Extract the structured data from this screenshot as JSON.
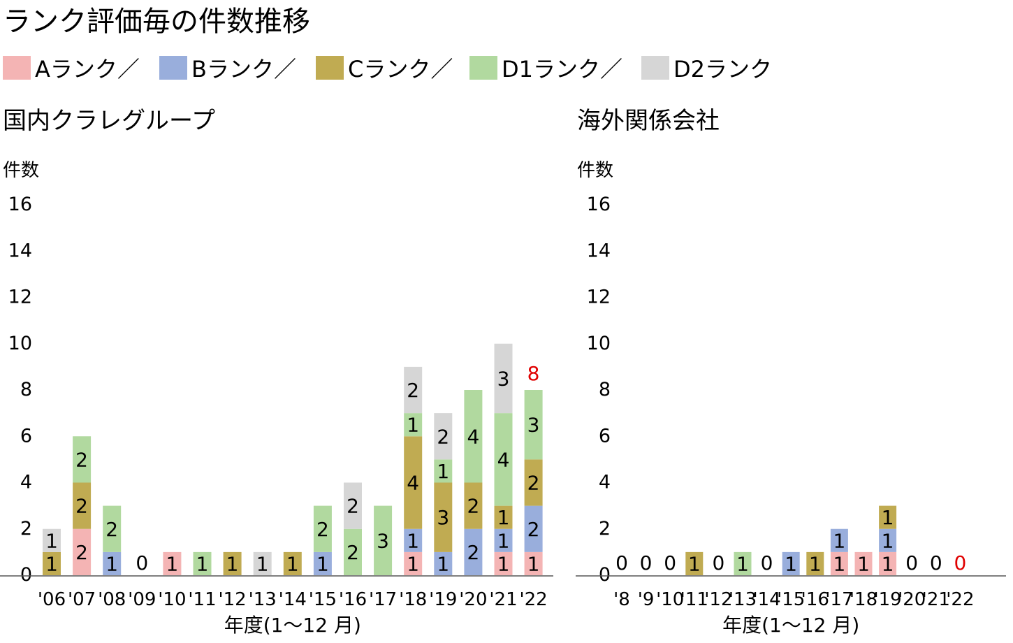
{
  "title": "ランク評価毎の件数推移",
  "legend": [
    {
      "name": "Aランク",
      "sep": "／",
      "color": "#f4b4b4"
    },
    {
      "name": "Bランク",
      "sep": "／",
      "color": "#99aedc"
    },
    {
      "name": "Cランク",
      "sep": "／",
      "color": "#c0ab52"
    },
    {
      "name": "D1ランク",
      "sep": "／",
      "color": "#b1d99f"
    },
    {
      "name": "D2ランク",
      "sep": "",
      "color": "#d6d6d6"
    }
  ],
  "chart_data": [
    {
      "type": "bar",
      "stacked": true,
      "title": "国内クラレグループ",
      "ylabel": "件数",
      "xlabel": "年度(1～12 月)",
      "ylim": [
        0,
        16
      ],
      "yticks": [
        0,
        2,
        4,
        6,
        8,
        10,
        12,
        14,
        16
      ],
      "categories": [
        "'06",
        "'07",
        "'08",
        "'09",
        "'10",
        "'11",
        "'12",
        "'13",
        "'14",
        "'15",
        "'16",
        "'17",
        "'18",
        "'19",
        "'20",
        "'21",
        "'22"
      ],
      "series": [
        {
          "name": "Aランク",
          "values": [
            0,
            2,
            0,
            0,
            1,
            0,
            0,
            0,
            0,
            0,
            0,
            0,
            1,
            0,
            0,
            1,
            1
          ]
        },
        {
          "name": "Bランク",
          "values": [
            0,
            0,
            1,
            0,
            0,
            0,
            0,
            0,
            0,
            1,
            0,
            0,
            1,
            1,
            2,
            1,
            2
          ]
        },
        {
          "name": "Cランク",
          "values": [
            1,
            2,
            0,
            0,
            0,
            0,
            1,
            0,
            1,
            0,
            0,
            0,
            4,
            3,
            2,
            1,
            2
          ]
        },
        {
          "name": "D1ランク",
          "values": [
            0,
            2,
            2,
            0,
            0,
            1,
            0,
            0,
            0,
            2,
            2,
            3,
            1,
            1,
            4,
            4,
            3
          ]
        },
        {
          "name": "D2ランク",
          "values": [
            1,
            0,
            0,
            0,
            0,
            0,
            0,
            1,
            0,
            0,
            2,
            0,
            2,
            2,
            0,
            3,
            0
          ]
        }
      ],
      "zero_labels": [
        "'09"
      ],
      "highlight_total": {
        "category": "'22",
        "label": "8"
      }
    },
    {
      "type": "bar",
      "stacked": true,
      "title": "海外関係会社",
      "ylabel": "件数",
      "xlabel": "年度(1～12 月)",
      "ylim": [
        0,
        16
      ],
      "yticks": [
        0,
        2,
        4,
        6,
        8,
        10,
        12,
        14,
        16
      ],
      "categories": [
        "'8",
        "'9",
        "'10",
        "'11",
        "'12",
        "'13",
        "'14",
        "'15",
        "'16",
        "'17",
        "'18",
        "'19",
        "'20",
        "'21",
        "'22"
      ],
      "series": [
        {
          "name": "Aランク",
          "values": [
            0,
            0,
            0,
            0,
            0,
            0,
            0,
            0,
            0,
            1,
            1,
            1,
            0,
            0,
            0
          ]
        },
        {
          "name": "Bランク",
          "values": [
            0,
            0,
            0,
            0,
            0,
            0,
            0,
            1,
            0,
            1,
            0,
            1,
            0,
            0,
            0
          ]
        },
        {
          "name": "Cランク",
          "values": [
            0,
            0,
            0,
            1,
            0,
            0,
            0,
            0,
            1,
            0,
            0,
            1,
            0,
            0,
            0
          ]
        },
        {
          "name": "D1ランク",
          "values": [
            0,
            0,
            0,
            0,
            0,
            1,
            0,
            0,
            0,
            0,
            0,
            0,
            0,
            0,
            0
          ]
        },
        {
          "name": "D2ランク",
          "values": [
            0,
            0,
            0,
            0,
            0,
            0,
            0,
            0,
            0,
            0,
            0,
            0,
            0,
            0,
            0
          ]
        }
      ],
      "zero_labels": [
        "'8",
        "'9",
        "'10",
        "'12",
        "'14",
        "'20",
        "'21",
        "'22"
      ],
      "highlight_total": {
        "category": "'22",
        "label": "0"
      }
    }
  ]
}
